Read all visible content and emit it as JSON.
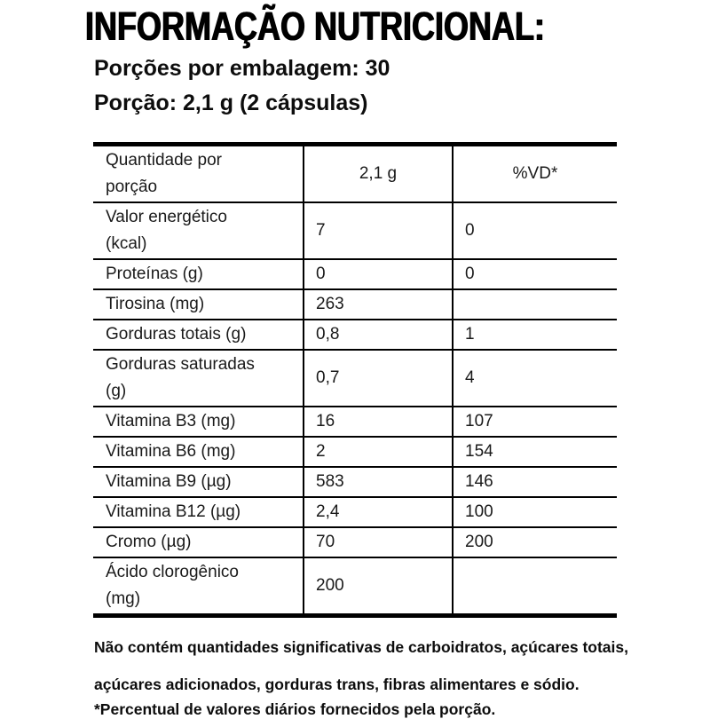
{
  "title": "INFORMAÇÃO NUTRICIONAL:",
  "servings_per_package": "Porções por embalagem: 30",
  "serving_size": "Porção: 2,1 g (2 cápsulas)",
  "table": {
    "header": [
      "Quantidade por porção",
      "2,1 g",
      "%VD*"
    ],
    "rows": [
      [
        "Valor energético (kcal)",
        "7",
        "0"
      ],
      [
        "Proteínas (g)",
        "0",
        "0"
      ],
      [
        "Tirosina (mg)",
        "263",
        ""
      ],
      [
        "Gorduras totais (g)",
        "0,8",
        "1"
      ],
      [
        "Gorduras saturadas (g)",
        "0,7",
        "4"
      ],
      [
        "Vitamina B3 (mg)",
        "16",
        "107"
      ],
      [
        "Vitamina B6 (mg)",
        "2",
        "154"
      ],
      [
        "Vitamina B9 (µg)",
        "583",
        "146"
      ],
      [
        "Vitamina B12 (µg)",
        "2,4",
        "100"
      ],
      [
        "Cromo (µg)",
        "70",
        "200"
      ],
      [
        "Ácido clorogênico (mg)",
        "200",
        ""
      ]
    ]
  },
  "notes": {
    "no_significant": "Não contém quantidades significativas de carboidratos, açúcares totais, açúcares adicionados, gorduras trans, fibras alimentares e sódio.",
    "daily_values": "*Percentual de valores diários fornecidos pela porção."
  },
  "colors": {
    "text": "#0d0d0d",
    "border": "#000000",
    "background": "#ffffff"
  }
}
